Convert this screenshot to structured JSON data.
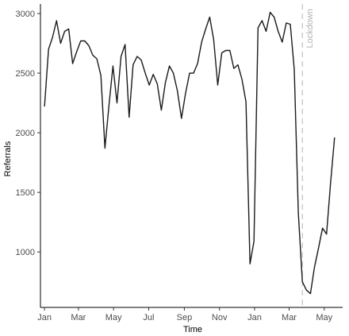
{
  "chart_data": {
    "type": "line",
    "title": "",
    "xlabel": "Time",
    "ylabel": "Referrals",
    "x_axis": {
      "ticks": [
        {
          "label": "Jan",
          "x": 0
        },
        {
          "label": "Mar",
          "x": 59
        },
        {
          "label": "May",
          "x": 120
        },
        {
          "label": "Jul",
          "x": 181
        },
        {
          "label": "Sep",
          "x": 243
        },
        {
          "label": "Nov",
          "x": 304
        },
        {
          "label": "Jan",
          "x": 365
        },
        {
          "label": "Mar",
          "x": 425
        },
        {
          "label": "May",
          "x": 486
        }
      ],
      "xlim": [
        -7,
        518
      ]
    },
    "y_axis": {
      "ticks": [
        1000,
        1500,
        2000,
        2500,
        3000
      ],
      "ylim": [
        535,
        3080
      ]
    },
    "grid": false,
    "colors": {
      "line": "#1a1a1a",
      "annotation": "#b3b3b3",
      "axis": "#000000"
    },
    "annotation": {
      "label": "Lockdown",
      "x": 448
    },
    "series": [
      {
        "x": [
          0,
          7,
          14,
          21,
          28,
          35,
          42,
          49,
          56,
          63,
          70,
          77,
          84,
          91,
          98,
          105,
          112,
          119,
          126,
          133,
          140,
          147,
          154,
          161,
          168,
          175,
          182,
          189,
          196,
          203,
          210,
          217,
          224,
          231,
          238,
          245,
          252,
          259,
          266,
          273,
          280,
          287,
          294,
          301,
          308,
          315,
          322,
          329,
          336,
          343,
          350,
          357,
          364,
          371,
          378,
          385,
          392,
          399,
          406,
          413,
          420,
          427,
          434,
          441,
          448,
          455,
          462,
          469,
          476,
          483,
          490,
          497,
          504
        ],
        "y": [
          2220,
          2700,
          2800,
          2940,
          2750,
          2850,
          2870,
          2580,
          2680,
          2770,
          2770,
          2730,
          2650,
          2620,
          2480,
          1870,
          2230,
          2560,
          2250,
          2640,
          2740,
          2130,
          2570,
          2640,
          2610,
          2500,
          2400,
          2490,
          2410,
          2190,
          2420,
          2560,
          2500,
          2350,
          2120,
          2330,
          2500,
          2500,
          2580,
          2760,
          2870,
          2970,
          2780,
          2400,
          2670,
          2690,
          2690,
          2540,
          2570,
          2450,
          2260,
          900,
          1090,
          2880,
          2940,
          2850,
          3010,
          2970,
          2850,
          2760,
          2920,
          2910,
          2530,
          1330,
          750,
          680,
          650,
          870,
          1030,
          1200,
          1150,
          1580,
          1960
        ]
      }
    ]
  }
}
